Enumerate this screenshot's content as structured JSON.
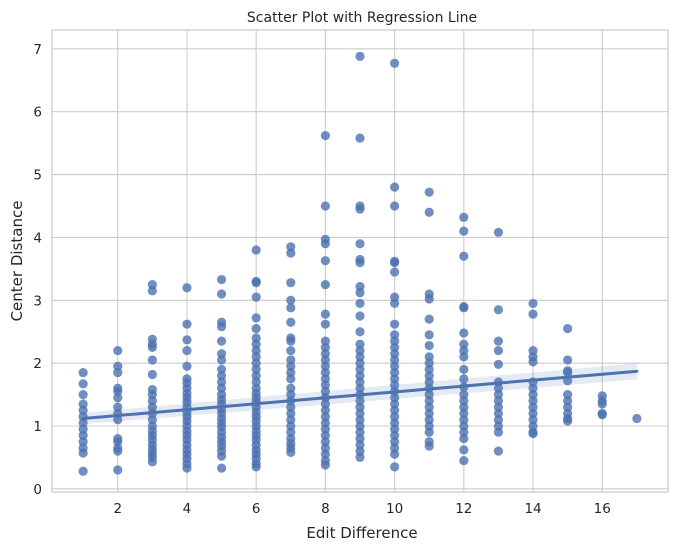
{
  "chart_data": {
    "type": "scatter",
    "title": "Scatter Plot with Regression Line",
    "xlabel": "Edit Difference",
    "ylabel": "Center Distance",
    "xlim": [
      0.1,
      17.9
    ],
    "ylim": [
      -0.05,
      7.3
    ],
    "xticks": [
      2,
      4,
      6,
      8,
      10,
      12,
      14,
      16
    ],
    "yticks": [
      0,
      1,
      2,
      3,
      4,
      5,
      6,
      7
    ],
    "grid": true,
    "colors": {
      "points": "#4c72b0",
      "line": "#4c72b0",
      "grid": "#cccccc"
    },
    "regression": {
      "x": [
        1,
        17
      ],
      "y": [
        1.12,
        1.87
      ],
      "ci_lower": [
        1.03,
        1.74
      ],
      "ci_upper": [
        1.21,
        2.0
      ]
    },
    "points": [
      {
        "x": 1,
        "y": 1.85
      },
      {
        "x": 1,
        "y": 1.67
      },
      {
        "x": 1,
        "y": 1.5
      },
      {
        "x": 1,
        "y": 1.35
      },
      {
        "x": 1,
        "y": 1.25
      },
      {
        "x": 1,
        "y": 1.15
      },
      {
        "x": 1,
        "y": 1.05
      },
      {
        "x": 1,
        "y": 0.95
      },
      {
        "x": 1,
        "y": 0.85
      },
      {
        "x": 1,
        "y": 0.75
      },
      {
        "x": 1,
        "y": 0.65
      },
      {
        "x": 1,
        "y": 0.57
      },
      {
        "x": 1,
        "y": 0.28
      },
      {
        "x": 2,
        "y": 2.2
      },
      {
        "x": 2,
        "y": 1.95
      },
      {
        "x": 2,
        "y": 1.85
      },
      {
        "x": 2,
        "y": 1.6
      },
      {
        "x": 2,
        "y": 1.55
      },
      {
        "x": 2,
        "y": 1.45
      },
      {
        "x": 2,
        "y": 1.3
      },
      {
        "x": 2,
        "y": 1.2
      },
      {
        "x": 2,
        "y": 1.1
      },
      {
        "x": 2,
        "y": 0.8
      },
      {
        "x": 2,
        "y": 0.75
      },
      {
        "x": 2,
        "y": 0.65
      },
      {
        "x": 2,
        "y": 0.6
      },
      {
        "x": 2,
        "y": 0.3
      },
      {
        "x": 3,
        "y": 3.25
      },
      {
        "x": 3,
        "y": 3.15
      },
      {
        "x": 3,
        "y": 2.38
      },
      {
        "x": 3,
        "y": 2.3
      },
      {
        "x": 3,
        "y": 2.25
      },
      {
        "x": 3,
        "y": 2.05
      },
      {
        "x": 3,
        "y": 1.82
      },
      {
        "x": 3,
        "y": 1.58
      },
      {
        "x": 3,
        "y": 1.5
      },
      {
        "x": 3,
        "y": 1.4
      },
      {
        "x": 3,
        "y": 1.3
      },
      {
        "x": 3,
        "y": 1.2
      },
      {
        "x": 3,
        "y": 1.1
      },
      {
        "x": 3,
        "y": 1.0
      },
      {
        "x": 3,
        "y": 0.92
      },
      {
        "x": 3,
        "y": 0.85
      },
      {
        "x": 3,
        "y": 0.78
      },
      {
        "x": 3,
        "y": 0.7
      },
      {
        "x": 3,
        "y": 0.63
      },
      {
        "x": 3,
        "y": 0.56
      },
      {
        "x": 3,
        "y": 0.5
      },
      {
        "x": 3,
        "y": 0.43
      },
      {
        "x": 4,
        "y": 3.2
      },
      {
        "x": 4,
        "y": 2.62
      },
      {
        "x": 4,
        "y": 2.37
      },
      {
        "x": 4,
        "y": 2.2
      },
      {
        "x": 4,
        "y": 1.95
      },
      {
        "x": 4,
        "y": 1.75
      },
      {
        "x": 4,
        "y": 1.68
      },
      {
        "x": 4,
        "y": 1.6
      },
      {
        "x": 4,
        "y": 1.52
      },
      {
        "x": 4,
        "y": 1.45
      },
      {
        "x": 4,
        "y": 1.38
      },
      {
        "x": 4,
        "y": 1.3
      },
      {
        "x": 4,
        "y": 1.22
      },
      {
        "x": 4,
        "y": 1.15
      },
      {
        "x": 4,
        "y": 1.08
      },
      {
        "x": 4,
        "y": 1.0
      },
      {
        "x": 4,
        "y": 0.92
      },
      {
        "x": 4,
        "y": 0.85
      },
      {
        "x": 4,
        "y": 0.78
      },
      {
        "x": 4,
        "y": 0.7
      },
      {
        "x": 4,
        "y": 0.62
      },
      {
        "x": 4,
        "y": 0.55
      },
      {
        "x": 4,
        "y": 0.48
      },
      {
        "x": 4,
        "y": 0.4
      },
      {
        "x": 4,
        "y": 0.33
      },
      {
        "x": 5,
        "y": 3.33
      },
      {
        "x": 5,
        "y": 3.1
      },
      {
        "x": 5,
        "y": 2.65
      },
      {
        "x": 5,
        "y": 2.58
      },
      {
        "x": 5,
        "y": 2.35
      },
      {
        "x": 5,
        "y": 2.15
      },
      {
        "x": 5,
        "y": 2.05
      },
      {
        "x": 5,
        "y": 1.9
      },
      {
        "x": 5,
        "y": 1.8
      },
      {
        "x": 5,
        "y": 1.7
      },
      {
        "x": 5,
        "y": 1.6
      },
      {
        "x": 5,
        "y": 1.5
      },
      {
        "x": 5,
        "y": 1.42
      },
      {
        "x": 5,
        "y": 1.35
      },
      {
        "x": 5,
        "y": 1.27
      },
      {
        "x": 5,
        "y": 1.2
      },
      {
        "x": 5,
        "y": 1.12
      },
      {
        "x": 5,
        "y": 1.05
      },
      {
        "x": 5,
        "y": 0.98
      },
      {
        "x": 5,
        "y": 0.9
      },
      {
        "x": 5,
        "y": 0.82
      },
      {
        "x": 5,
        "y": 0.75
      },
      {
        "x": 5,
        "y": 0.68
      },
      {
        "x": 5,
        "y": 0.6
      },
      {
        "x": 5,
        "y": 0.52
      },
      {
        "x": 5,
        "y": 0.33
      },
      {
        "x": 6,
        "y": 3.8
      },
      {
        "x": 6,
        "y": 3.3
      },
      {
        "x": 6,
        "y": 3.28
      },
      {
        "x": 6,
        "y": 3.05
      },
      {
        "x": 6,
        "y": 2.72
      },
      {
        "x": 6,
        "y": 2.55
      },
      {
        "x": 6,
        "y": 2.4
      },
      {
        "x": 6,
        "y": 2.3
      },
      {
        "x": 6,
        "y": 2.2
      },
      {
        "x": 6,
        "y": 2.1
      },
      {
        "x": 6,
        "y": 2.0
      },
      {
        "x": 6,
        "y": 1.9
      },
      {
        "x": 6,
        "y": 1.8
      },
      {
        "x": 6,
        "y": 1.7
      },
      {
        "x": 6,
        "y": 1.6
      },
      {
        "x": 6,
        "y": 1.52
      },
      {
        "x": 6,
        "y": 1.45
      },
      {
        "x": 6,
        "y": 1.38
      },
      {
        "x": 6,
        "y": 1.3
      },
      {
        "x": 6,
        "y": 1.22
      },
      {
        "x": 6,
        "y": 1.15
      },
      {
        "x": 6,
        "y": 1.08
      },
      {
        "x": 6,
        "y": 1.0
      },
      {
        "x": 6,
        "y": 0.92
      },
      {
        "x": 6,
        "y": 0.85
      },
      {
        "x": 6,
        "y": 0.78
      },
      {
        "x": 6,
        "y": 0.7
      },
      {
        "x": 6,
        "y": 0.62
      },
      {
        "x": 6,
        "y": 0.55
      },
      {
        "x": 6,
        "y": 0.48
      },
      {
        "x": 6,
        "y": 0.4
      },
      {
        "x": 6,
        "y": 0.35
      },
      {
        "x": 7,
        "y": 3.85
      },
      {
        "x": 7,
        "y": 3.75
      },
      {
        "x": 7,
        "y": 3.28
      },
      {
        "x": 7,
        "y": 3.0
      },
      {
        "x": 7,
        "y": 2.88
      },
      {
        "x": 7,
        "y": 2.65
      },
      {
        "x": 7,
        "y": 2.4
      },
      {
        "x": 7,
        "y": 2.35
      },
      {
        "x": 7,
        "y": 2.2
      },
      {
        "x": 7,
        "y": 2.05
      },
      {
        "x": 7,
        "y": 1.95
      },
      {
        "x": 7,
        "y": 1.85
      },
      {
        "x": 7,
        "y": 1.75
      },
      {
        "x": 7,
        "y": 1.6
      },
      {
        "x": 7,
        "y": 1.5
      },
      {
        "x": 7,
        "y": 1.4
      },
      {
        "x": 7,
        "y": 1.3
      },
      {
        "x": 7,
        "y": 1.2
      },
      {
        "x": 7,
        "y": 1.1
      },
      {
        "x": 7,
        "y": 1.0
      },
      {
        "x": 7,
        "y": 0.9
      },
      {
        "x": 7,
        "y": 0.8
      },
      {
        "x": 7,
        "y": 0.72
      },
      {
        "x": 7,
        "y": 0.65
      },
      {
        "x": 7,
        "y": 0.58
      },
      {
        "x": 8,
        "y": 5.62
      },
      {
        "x": 8,
        "y": 4.5
      },
      {
        "x": 8,
        "y": 3.97
      },
      {
        "x": 8,
        "y": 3.9
      },
      {
        "x": 8,
        "y": 3.63
      },
      {
        "x": 8,
        "y": 3.25
      },
      {
        "x": 8,
        "y": 2.78
      },
      {
        "x": 8,
        "y": 2.62
      },
      {
        "x": 8,
        "y": 2.35
      },
      {
        "x": 8,
        "y": 2.25
      },
      {
        "x": 8,
        "y": 2.15
      },
      {
        "x": 8,
        "y": 2.05
      },
      {
        "x": 8,
        "y": 1.95
      },
      {
        "x": 8,
        "y": 1.85
      },
      {
        "x": 8,
        "y": 1.75
      },
      {
        "x": 8,
        "y": 1.65
      },
      {
        "x": 8,
        "y": 1.55
      },
      {
        "x": 8,
        "y": 1.45
      },
      {
        "x": 8,
        "y": 1.35
      },
      {
        "x": 8,
        "y": 1.25
      },
      {
        "x": 8,
        "y": 1.15
      },
      {
        "x": 8,
        "y": 1.05
      },
      {
        "x": 8,
        "y": 0.95
      },
      {
        "x": 8,
        "y": 0.85
      },
      {
        "x": 8,
        "y": 0.75
      },
      {
        "x": 8,
        "y": 0.65
      },
      {
        "x": 8,
        "y": 0.55
      },
      {
        "x": 8,
        "y": 0.45
      },
      {
        "x": 8,
        "y": 0.38
      },
      {
        "x": 9,
        "y": 6.88
      },
      {
        "x": 9,
        "y": 5.58
      },
      {
        "x": 9,
        "y": 4.5
      },
      {
        "x": 9,
        "y": 4.45
      },
      {
        "x": 9,
        "y": 3.9
      },
      {
        "x": 9,
        "y": 3.65
      },
      {
        "x": 9,
        "y": 3.6
      },
      {
        "x": 9,
        "y": 3.22
      },
      {
        "x": 9,
        "y": 3.12
      },
      {
        "x": 9,
        "y": 2.95
      },
      {
        "x": 9,
        "y": 2.75
      },
      {
        "x": 9,
        "y": 2.5
      },
      {
        "x": 9,
        "y": 2.3
      },
      {
        "x": 9,
        "y": 2.2
      },
      {
        "x": 9,
        "y": 2.1
      },
      {
        "x": 9,
        "y": 2.0
      },
      {
        "x": 9,
        "y": 1.9
      },
      {
        "x": 9,
        "y": 1.8
      },
      {
        "x": 9,
        "y": 1.7
      },
      {
        "x": 9,
        "y": 1.6
      },
      {
        "x": 9,
        "y": 1.5
      },
      {
        "x": 9,
        "y": 1.4
      },
      {
        "x": 9,
        "y": 1.3
      },
      {
        "x": 9,
        "y": 1.2
      },
      {
        "x": 9,
        "y": 1.1
      },
      {
        "x": 9,
        "y": 1.0
      },
      {
        "x": 9,
        "y": 0.9
      },
      {
        "x": 9,
        "y": 0.8
      },
      {
        "x": 9,
        "y": 0.7
      },
      {
        "x": 9,
        "y": 0.6
      },
      {
        "x": 9,
        "y": 0.5
      },
      {
        "x": 10,
        "y": 6.77
      },
      {
        "x": 10,
        "y": 4.8
      },
      {
        "x": 10,
        "y": 4.5
      },
      {
        "x": 10,
        "y": 3.62
      },
      {
        "x": 10,
        "y": 3.6
      },
      {
        "x": 10,
        "y": 3.45
      },
      {
        "x": 10,
        "y": 3.05
      },
      {
        "x": 10,
        "y": 2.95
      },
      {
        "x": 10,
        "y": 2.62
      },
      {
        "x": 10,
        "y": 2.45
      },
      {
        "x": 10,
        "y": 2.35
      },
      {
        "x": 10,
        "y": 2.25
      },
      {
        "x": 10,
        "y": 2.15
      },
      {
        "x": 10,
        "y": 2.05
      },
      {
        "x": 10,
        "y": 1.95
      },
      {
        "x": 10,
        "y": 1.85
      },
      {
        "x": 10,
        "y": 1.75
      },
      {
        "x": 10,
        "y": 1.65
      },
      {
        "x": 10,
        "y": 1.55
      },
      {
        "x": 10,
        "y": 1.45
      },
      {
        "x": 10,
        "y": 1.35
      },
      {
        "x": 10,
        "y": 1.25
      },
      {
        "x": 10,
        "y": 1.15
      },
      {
        "x": 10,
        "y": 1.05
      },
      {
        "x": 10,
        "y": 0.95
      },
      {
        "x": 10,
        "y": 0.85
      },
      {
        "x": 10,
        "y": 0.75
      },
      {
        "x": 10,
        "y": 0.65
      },
      {
        "x": 10,
        "y": 0.55
      },
      {
        "x": 10,
        "y": 0.35
      },
      {
        "x": 11,
        "y": 4.72
      },
      {
        "x": 11,
        "y": 4.4
      },
      {
        "x": 11,
        "y": 3.1
      },
      {
        "x": 11,
        "y": 3.02
      },
      {
        "x": 11,
        "y": 2.7
      },
      {
        "x": 11,
        "y": 2.45
      },
      {
        "x": 11,
        "y": 2.28
      },
      {
        "x": 11,
        "y": 2.1
      },
      {
        "x": 11,
        "y": 2.0
      },
      {
        "x": 11,
        "y": 1.9
      },
      {
        "x": 11,
        "y": 1.8
      },
      {
        "x": 11,
        "y": 1.7
      },
      {
        "x": 11,
        "y": 1.6
      },
      {
        "x": 11,
        "y": 1.5
      },
      {
        "x": 11,
        "y": 1.4
      },
      {
        "x": 11,
        "y": 1.3
      },
      {
        "x": 11,
        "y": 1.2
      },
      {
        "x": 11,
        "y": 1.1
      },
      {
        "x": 11,
        "y": 1.0
      },
      {
        "x": 11,
        "y": 0.9
      },
      {
        "x": 11,
        "y": 0.75
      },
      {
        "x": 11,
        "y": 0.68
      },
      {
        "x": 12,
        "y": 4.32
      },
      {
        "x": 12,
        "y": 4.1
      },
      {
        "x": 12,
        "y": 3.7
      },
      {
        "x": 12,
        "y": 2.9
      },
      {
        "x": 12,
        "y": 2.88
      },
      {
        "x": 12,
        "y": 2.48
      },
      {
        "x": 12,
        "y": 2.3
      },
      {
        "x": 12,
        "y": 2.2
      },
      {
        "x": 12,
        "y": 2.1
      },
      {
        "x": 12,
        "y": 1.9
      },
      {
        "x": 12,
        "y": 1.75
      },
      {
        "x": 12,
        "y": 1.62
      },
      {
        "x": 12,
        "y": 1.5
      },
      {
        "x": 12,
        "y": 1.4
      },
      {
        "x": 12,
        "y": 1.3
      },
      {
        "x": 12,
        "y": 1.2
      },
      {
        "x": 12,
        "y": 1.1
      },
      {
        "x": 12,
        "y": 1.0
      },
      {
        "x": 12,
        "y": 0.9
      },
      {
        "x": 12,
        "y": 0.8
      },
      {
        "x": 12,
        "y": 0.62
      },
      {
        "x": 12,
        "y": 0.45
      },
      {
        "x": 13,
        "y": 4.08
      },
      {
        "x": 13,
        "y": 2.85
      },
      {
        "x": 13,
        "y": 2.35
      },
      {
        "x": 13,
        "y": 2.2
      },
      {
        "x": 13,
        "y": 1.98
      },
      {
        "x": 13,
        "y": 1.7
      },
      {
        "x": 13,
        "y": 1.6
      },
      {
        "x": 13,
        "y": 1.5
      },
      {
        "x": 13,
        "y": 1.4
      },
      {
        "x": 13,
        "y": 1.3
      },
      {
        "x": 13,
        "y": 1.2
      },
      {
        "x": 13,
        "y": 1.1
      },
      {
        "x": 13,
        "y": 1.0
      },
      {
        "x": 13,
        "y": 0.9
      },
      {
        "x": 13,
        "y": 0.6
      },
      {
        "x": 14,
        "y": 2.95
      },
      {
        "x": 14,
        "y": 2.78
      },
      {
        "x": 14,
        "y": 2.2
      },
      {
        "x": 14,
        "y": 2.1
      },
      {
        "x": 14,
        "y": 2.02
      },
      {
        "x": 14,
        "y": 1.7
      },
      {
        "x": 14,
        "y": 1.6
      },
      {
        "x": 14,
        "y": 1.5
      },
      {
        "x": 14,
        "y": 1.4
      },
      {
        "x": 14,
        "y": 1.3
      },
      {
        "x": 14,
        "y": 1.2
      },
      {
        "x": 14,
        "y": 1.1
      },
      {
        "x": 14,
        "y": 1.0
      },
      {
        "x": 14,
        "y": 0.9
      },
      {
        "x": 14,
        "y": 0.88
      },
      {
        "x": 15,
        "y": 2.55
      },
      {
        "x": 15,
        "y": 2.05
      },
      {
        "x": 15,
        "y": 1.88
      },
      {
        "x": 15,
        "y": 1.85
      },
      {
        "x": 15,
        "y": 1.72
      },
      {
        "x": 15,
        "y": 1.5
      },
      {
        "x": 15,
        "y": 1.4
      },
      {
        "x": 15,
        "y": 1.3
      },
      {
        "x": 15,
        "y": 1.2
      },
      {
        "x": 15,
        "y": 1.12
      },
      {
        "x": 15,
        "y": 1.08
      },
      {
        "x": 16,
        "y": 1.48
      },
      {
        "x": 16,
        "y": 1.4
      },
      {
        "x": 16,
        "y": 1.35
      },
      {
        "x": 16,
        "y": 1.2
      },
      {
        "x": 16,
        "y": 1.18
      },
      {
        "x": 17,
        "y": 1.12
      }
    ]
  }
}
